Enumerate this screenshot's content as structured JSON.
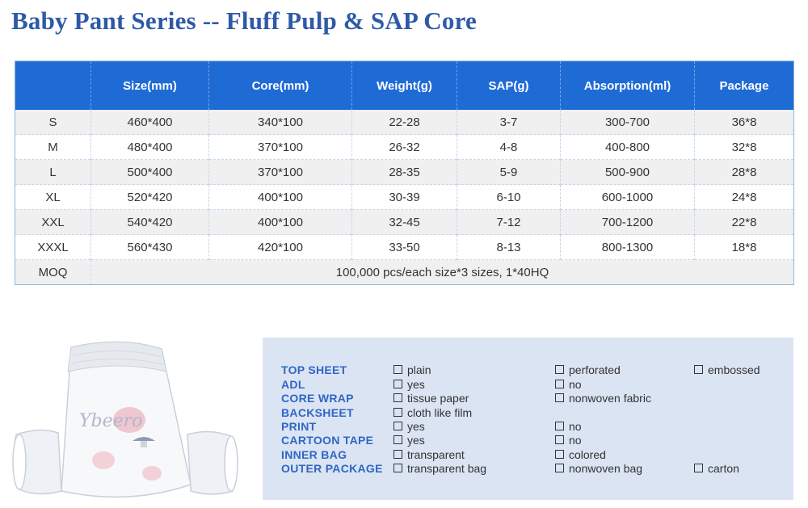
{
  "title": "Baby Pant Series -- Fluff Pulp & SAP Core",
  "table": {
    "headers": [
      "",
      "Size(mm)",
      "Core(mm)",
      "Weight(g)",
      "SAP(g)",
      "Absorption(ml)",
      "Package"
    ],
    "rows": [
      [
        "S",
        "460*400",
        "340*100",
        "22-28",
        "3-7",
        "300-700",
        "36*8"
      ],
      [
        "M",
        "480*400",
        "370*100",
        "26-32",
        "4-8",
        "400-800",
        "32*8"
      ],
      [
        "L",
        "500*400",
        "370*100",
        "28-35",
        "5-9",
        "500-900",
        "28*8"
      ],
      [
        "XL",
        "520*420",
        "400*100",
        "30-39",
        "6-10",
        "600-1000",
        "24*8"
      ],
      [
        "XXL",
        "540*420",
        "400*100",
        "32-45",
        "7-12",
        "700-1200",
        "22*8"
      ],
      [
        "XXXL",
        "560*430",
        "420*100",
        "33-50",
        "8-13",
        "800-1300",
        "18*8"
      ]
    ],
    "moq": {
      "label": "MOQ",
      "value": "100,000 pcs/each size*3 sizes, 1*40HQ"
    }
  },
  "product": {
    "brand": "Ybeero"
  },
  "options": [
    {
      "label": "TOP SHEET",
      "choices": [
        "plain",
        "perforated",
        "embossed"
      ]
    },
    {
      "label": "ADL",
      "choices": [
        "yes",
        "no"
      ]
    },
    {
      "label": "CORE WRAP",
      "choices": [
        "tissue paper",
        "nonwoven fabric"
      ]
    },
    {
      "label": "BACKSHEET",
      "choices": [
        "cloth like film"
      ]
    },
    {
      "label": "PRINT",
      "choices": [
        "yes",
        "no"
      ]
    },
    {
      "label": "CARTOON TAPE",
      "choices": [
        "yes",
        "no"
      ]
    },
    {
      "label": "INNER BAG",
      "choices": [
        "transparent",
        "colored"
      ]
    },
    {
      "label": "OUTER PACKAGE",
      "choices": [
        "transparent bag",
        "nonwoven bag",
        "carton"
      ]
    }
  ]
}
